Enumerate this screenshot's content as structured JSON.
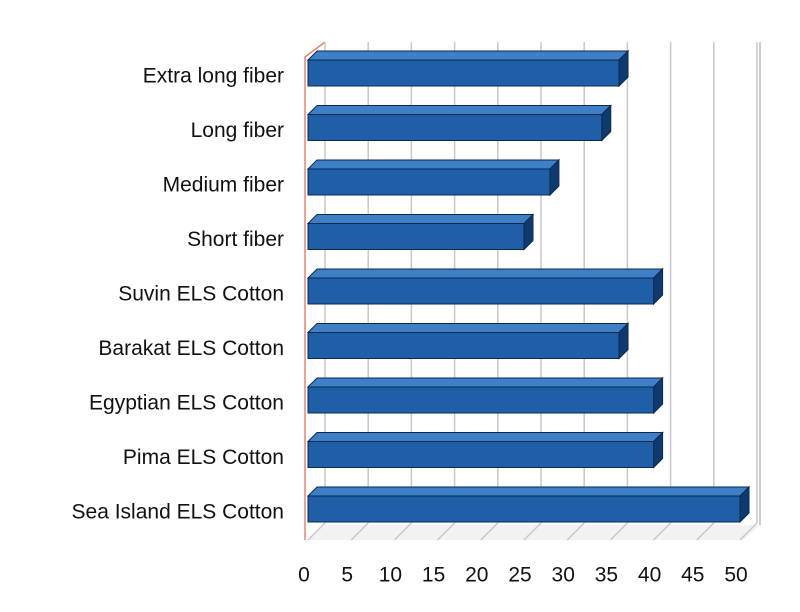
{
  "chart_data": {
    "type": "bar",
    "orientation": "horizontal",
    "categories": [
      "Extra long fiber",
      "Long fiber",
      "Medium fiber",
      "Short fiber",
      "Suvin ELS Cotton",
      "Barakat ELS Cotton",
      "Egyptian ELS Cotton",
      "Pima ELS Cotton",
      "Sea Island ELS Cotton"
    ],
    "values": [
      36,
      34,
      28,
      25,
      40,
      36,
      40,
      40,
      50
    ],
    "color": "#1f5fa8",
    "xlim": [
      0,
      50
    ],
    "xticks": [
      0,
      5,
      10,
      15,
      20,
      25,
      30,
      35,
      40,
      45,
      50
    ],
    "grid": true
  }
}
